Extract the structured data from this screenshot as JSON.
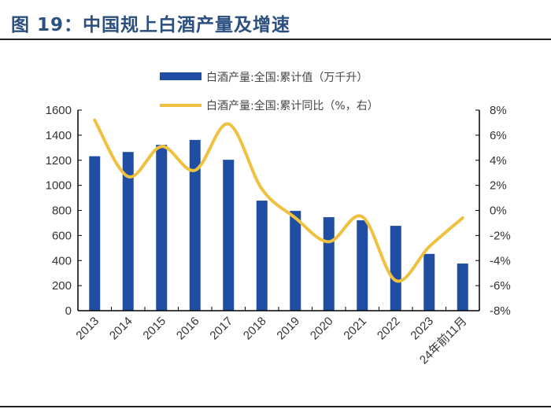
{
  "title": "图 19：中国规上白酒产量及增速",
  "chart_data": {
    "type": "bar+line",
    "title": "图 19：中国规上白酒产量及增速",
    "categories": [
      "2013",
      "2014",
      "2015",
      "2016",
      "2017",
      "2018",
      "2019",
      "2020",
      "2021",
      "2022",
      "2023",
      "24年前11月"
    ],
    "series": [
      {
        "name": "白酒产量:全国:累计值（万千升）",
        "type": "bar",
        "axis": "left",
        "color": "#1f4ea3",
        "values": [
          1232,
          1266,
          1323,
          1362,
          1204,
          878,
          796,
          746,
          721,
          677,
          453,
          376
        ]
      },
      {
        "name": "白酒产量:全国:累计同比（%，右）",
        "type": "line",
        "axis": "right",
        "color": "#f0c040",
        "smooth": true,
        "values": [
          7.2,
          2.7,
          5.1,
          3.2,
          6.9,
          1.7,
          -0.6,
          -2.5,
          -0.5,
          -5.6,
          -2.9,
          -0.6
        ]
      }
    ],
    "ylim": [
      0,
      1600
    ],
    "yticks": [
      "0",
      "200",
      "400",
      "600",
      "800",
      "1000",
      "1200",
      "1400",
      "1600"
    ],
    "y2lim": [
      -8,
      8
    ],
    "y2ticks": [
      "-8%",
      "-6%",
      "-4%",
      "-2%",
      "0%",
      "2%",
      "4%",
      "6%",
      "8%"
    ],
    "grid": false,
    "legend": "top-center"
  }
}
